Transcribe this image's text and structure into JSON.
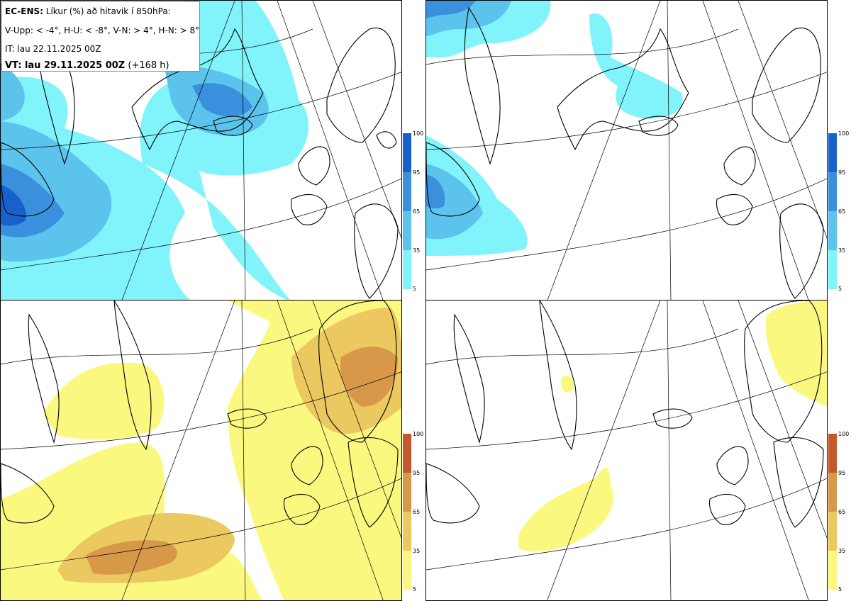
{
  "title_block": {
    "line1_bold": "EC-ENS:",
    "line1_rest": " Líkur (%) að hitavik í 850hPa:",
    "line2": "V-Upp: < -4°, H-U: < -8°, V-N: > 4°, H-N: > 8°",
    "line3": "IT: lau 22.11.2025 00Z",
    "line4_bold": "VT: lau 29.11.2025 00Z",
    "line4_rest": " (+168 h)"
  },
  "panels": [
    {
      "id": "V-Upp",
      "threshold": "< -4°",
      "palette": "blue"
    },
    {
      "id": "H-U",
      "threshold": "< -8°",
      "palette": "blue"
    },
    {
      "id": "V-N",
      "threshold": "> 4°",
      "palette": "yellow"
    },
    {
      "id": "H-N",
      "threshold": "> 8°",
      "palette": "yellow"
    }
  ],
  "colorbar": {
    "ticks": [
      "100",
      "95",
      "65",
      "35",
      "5"
    ],
    "levels": [
      5,
      35,
      65,
      95,
      100
    ],
    "blue_colors": [
      "#80f4fa",
      "#5cc4ec",
      "#3a90dc",
      "#1860cc"
    ],
    "yellow_colors": [
      "#fbf880",
      "#ecc860",
      "#d8984a",
      "#c4582a"
    ]
  }
}
